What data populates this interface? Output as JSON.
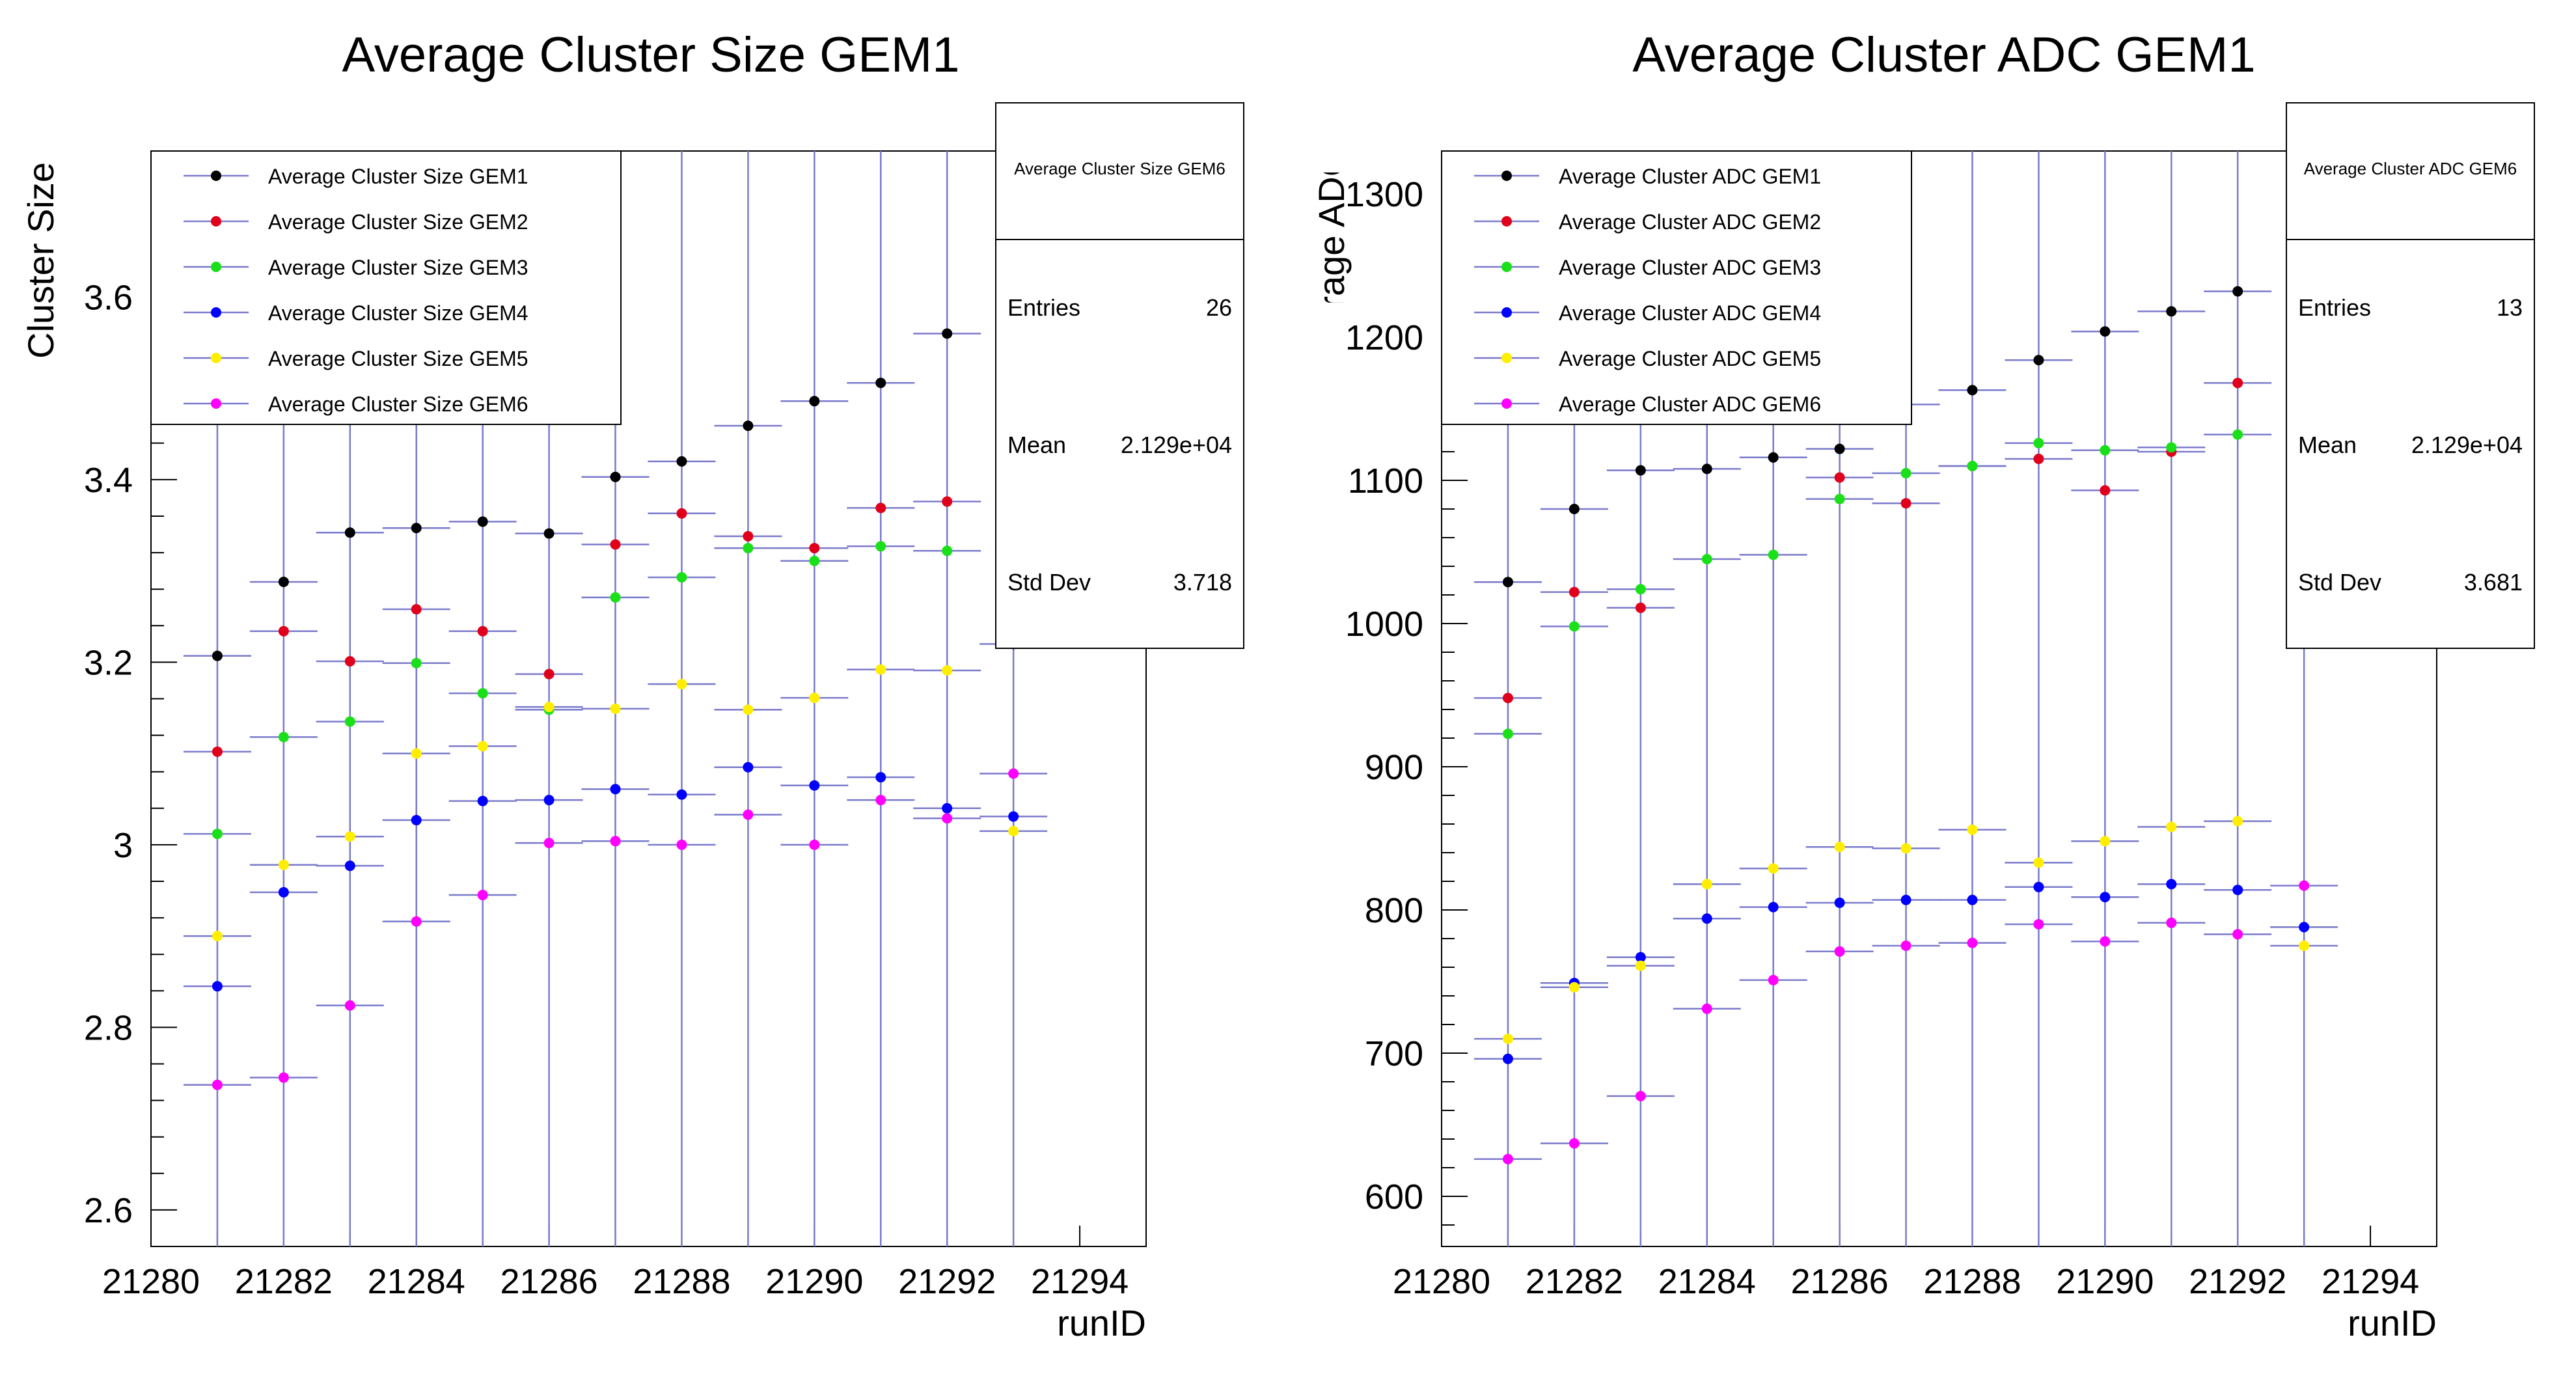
{
  "colors": {
    "frame": "#000000",
    "error_bar": "#7a7acc",
    "gem1": "#000000",
    "gem2": "#e0001b",
    "gem3": "#19e019",
    "gem4": "#0000ff",
    "gem5": "#ffee00",
    "gem6": "#ff00ff"
  },
  "chart_data": [
    {
      "type": "scatter",
      "title": "Average Cluster Size GEM1",
      "xlabel": "runID",
      "ylabel": "Cluster Size",
      "xlim": [
        21280,
        21295
      ],
      "ylim": [
        2.56,
        3.76
      ],
      "x_ticks": [
        "21280",
        "21282",
        "21284",
        "21286",
        "21288",
        "21290",
        "21292",
        "21294"
      ],
      "y_ticks": [
        "2.6",
        "2.8",
        "3",
        "3.2",
        "3.4",
        "3.6"
      ],
      "legend_position": "top-left",
      "x": [
        21281,
        21282,
        21283,
        21284,
        21285,
        21286,
        21287,
        21288,
        21289,
        21290,
        21291,
        21292,
        21293
      ],
      "series": [
        {
          "name": "Average Cluster Size GEM1",
          "values": [
            3.207,
            3.288,
            3.342,
            3.347,
            3.354,
            3.341,
            3.403,
            3.42,
            3.459,
            3.486,
            3.506,
            3.56,
            3.22
          ]
        },
        {
          "name": "Average Cluster Size GEM2",
          "values": [
            3.102,
            3.234,
            3.201,
            3.258,
            3.234,
            3.187,
            3.329,
            3.363,
            3.338,
            3.325,
            3.369,
            3.376,
            null
          ]
        },
        {
          "name": "Average Cluster Size GEM3",
          "values": [
            3.012,
            3.118,
            3.135,
            3.199,
            3.166,
            3.148,
            3.271,
            3.293,
            3.325,
            3.311,
            3.327,
            3.322,
            null
          ]
        },
        {
          "name": "Average Cluster Size GEM4",
          "values": [
            2.845,
            2.948,
            2.977,
            3.027,
            3.048,
            3.049,
            3.061,
            3.055,
            3.085,
            3.065,
            3.074,
            3.04,
            3.031
          ]
        },
        {
          "name": "Average Cluster Size GEM5",
          "values": [
            2.9,
            2.978,
            3.009,
            3.1,
            3.108,
            3.151,
            3.149,
            3.176,
            3.148,
            3.161,
            3.192,
            3.191,
            3.015
          ]
        },
        {
          "name": "Average Cluster Size GEM6",
          "values": [
            2.737,
            2.745,
            2.824,
            2.916,
            2.945,
            3.002,
            3.004,
            3.0,
            3.033,
            3.0,
            3.049,
            3.029,
            3.078
          ]
        }
      ],
      "stats_box": {
        "name": "Average Cluster Size GEM6",
        "rows": [
          {
            "label": "Entries",
            "value": "26"
          },
          {
            "label": "Mean",
            "value": "2.129e+04"
          },
          {
            "label": "Std Dev",
            "value": "3.718"
          }
        ]
      }
    },
    {
      "type": "scatter",
      "title": "Average Cluster ADC GEM1",
      "xlabel": "runID",
      "ylabel": "Average ADC",
      "xlim": [
        21280,
        21295
      ],
      "ylim": [
        565,
        1330
      ],
      "x_ticks": [
        "21280",
        "21282",
        "21284",
        "21286",
        "21288",
        "21290",
        "21292",
        "21294"
      ],
      "y_ticks": [
        "600",
        "700",
        "800",
        "900",
        "1000",
        "1100",
        "1200",
        "1300"
      ],
      "legend_position": "top-left",
      "x": [
        21281,
        21282,
        21283,
        21284,
        21285,
        21286,
        21287,
        21288,
        21289,
        21290,
        21291,
        21292,
        21293
      ],
      "series": [
        {
          "name": "Average Cluster ADC GEM1",
          "values": [
            1029,
            1080,
            1107,
            1108,
            1116,
            1122,
            1153,
            1163,
            1184,
            1204,
            1218,
            1232,
            null
          ]
        },
        {
          "name": "Average Cluster ADC GEM2",
          "values": [
            948,
            1022,
            1011,
            null,
            null,
            1102,
            1084,
            1110,
            1115,
            1093,
            1120,
            1168,
            null
          ]
        },
        {
          "name": "Average Cluster ADC GEM3",
          "values": [
            923,
            998,
            1024,
            1045,
            1048,
            1087,
            1105,
            1110,
            1126,
            1121,
            1123,
            1132,
            null
          ]
        },
        {
          "name": "Average Cluster ADC GEM4",
          "values": [
            696,
            749,
            767,
            794,
            802,
            805,
            807,
            807,
            816,
            809,
            818,
            814,
            788
          ]
        },
        {
          "name": "Average Cluster ADC GEM5",
          "values": [
            710,
            746,
            761,
            818,
            829,
            844,
            843,
            856,
            833,
            848,
            858,
            862,
            775
          ]
        },
        {
          "name": "Average Cluster ADC GEM6",
          "values": [
            626,
            637,
            670,
            731,
            751,
            771,
            775,
            777,
            790,
            778,
            791,
            783,
            817
          ]
        }
      ],
      "stats_box": {
        "name": "Average Cluster ADC GEM6",
        "rows": [
          {
            "label": "Entries",
            "value": "13"
          },
          {
            "label": "Mean",
            "value": "2.129e+04"
          },
          {
            "label": "Std Dev",
            "value": "3.681"
          }
        ]
      }
    }
  ]
}
